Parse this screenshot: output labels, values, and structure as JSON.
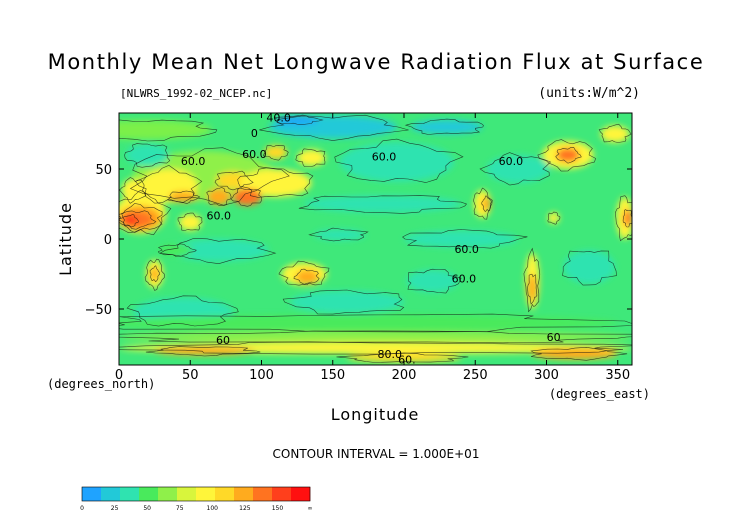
{
  "title": "Monthly Mean Net Longwave Radiation Flux at Surface",
  "file_label": "[NLWRS_1992-02_NCEP.nc]",
  "units_label": "(units:W/m^2)",
  "contour_interval": "CONTOUR INTERVAL = 1.000E+01",
  "chart_data": {
    "type": "heatmap",
    "title": "Monthly Mean Net Longwave Radiation Flux at Surface",
    "xlabel": "Longitude",
    "ylabel": "Latitude",
    "x_unit": "(degrees_east)",
    "y_unit": "(degrees_north)",
    "xlim": [
      0,
      360
    ],
    "ylim": [
      -90,
      90
    ],
    "x_ticks": [
      0,
      50,
      100,
      150,
      200,
      250,
      300,
      350
    ],
    "y_ticks": [
      50,
      0,
      -50
    ],
    "y_tick_labels": [
      "50",
      "0",
      "−50"
    ],
    "contour_labels": [
      {
        "text": "40.0",
        "lon": 112,
        "lat": 84
      },
      {
        "text": "0",
        "lon": 95,
        "lat": 73
      },
      {
        "text": "60.0",
        "lon": 52,
        "lat": 53
      },
      {
        "text": "60.0",
        "lon": 95,
        "lat": 58
      },
      {
        "text": "60.0",
        "lon": 186,
        "lat": 56
      },
      {
        "text": "60.0",
        "lon": 275,
        "lat": 53
      },
      {
        "text": "60.0",
        "lon": 70,
        "lat": 14
      },
      {
        "text": "60.0",
        "lon": 244,
        "lat": -10
      },
      {
        "text": "60.0",
        "lon": 242,
        "lat": -31
      },
      {
        "text": "60",
        "lon": 305,
        "lat": -73
      },
      {
        "text": "60",
        "lon": 73,
        "lat": -75
      },
      {
        "text": "80.0",
        "lon": 190,
        "lat": -85
      },
      {
        "text": "60.",
        "lon": 202,
        "lat": -89
      }
    ],
    "colorbar": {
      "ticks": [
        "0",
        "25",
        "50",
        "75",
        "100",
        "125",
        "150",
        "∞"
      ],
      "colors": [
        "#1fa3ff",
        "#22c9d8",
        "#2fe3b0",
        "#49ea5c",
        "#8ff04a",
        "#d8f53c",
        "#fff53a",
        "#ffd928",
        "#ffab1e",
        "#ff7320",
        "#ff3f1c",
        "#ff1010"
      ]
    },
    "fields": {
      "base_color": "#3fe87a",
      "blobs": [
        {
          "lon": 20,
          "lat": 78,
          "rx": 45,
          "ry": 7,
          "color": "#7cf04a"
        },
        {
          "lon": 60,
          "lat": 45,
          "rx": 50,
          "ry": 18,
          "color": "#8ff04a"
        },
        {
          "lon": 35,
          "lat": 38,
          "rx": 20,
          "ry": 12,
          "color": "#fff53a"
        },
        {
          "lon": 10,
          "lat": 35,
          "rx": 8,
          "ry": 8,
          "color": "#fff53a"
        },
        {
          "lon": 80,
          "lat": 42,
          "rx": 12,
          "ry": 6,
          "color": "#ffd928"
        },
        {
          "lon": 70,
          "lat": 30,
          "rx": 8,
          "ry": 6,
          "color": "#ffab1e"
        },
        {
          "lon": 110,
          "lat": 40,
          "rx": 25,
          "ry": 10,
          "color": "#fff53a"
        },
        {
          "lon": 90,
          "lat": 30,
          "rx": 10,
          "ry": 6,
          "color": "#ff7320"
        },
        {
          "lon": 45,
          "lat": 30,
          "rx": 10,
          "ry": 4,
          "color": "#ffab1e"
        },
        {
          "lon": 15,
          "lat": 18,
          "rx": 18,
          "ry": 14,
          "color": "#fff53a"
        },
        {
          "lon": 15,
          "lat": 15,
          "rx": 15,
          "ry": 9,
          "color": "#ffab1e"
        },
        {
          "lon": 12,
          "lat": 14,
          "rx": 12,
          "ry": 6,
          "color": "#ff7320"
        },
        {
          "lon": 8,
          "lat": 13,
          "rx": 5,
          "ry": 4,
          "color": "#ff3f1c"
        },
        {
          "lon": 50,
          "lat": 12,
          "rx": 8,
          "ry": 6,
          "color": "#fff53a"
        },
        {
          "lon": 135,
          "lat": 58,
          "rx": 10,
          "ry": 6,
          "color": "#fff53a"
        },
        {
          "lon": 110,
          "lat": 62,
          "rx": 8,
          "ry": 5,
          "color": "#ffd928"
        },
        {
          "lon": 255,
          "lat": 25,
          "rx": 6,
          "ry": 10,
          "color": "#fff53a"
        },
        {
          "lon": 258,
          "lat": 25,
          "rx": 3,
          "ry": 5,
          "color": "#ffab1e"
        },
        {
          "lon": 315,
          "lat": 60,
          "rx": 18,
          "ry": 10,
          "color": "#fff53a"
        },
        {
          "lon": 315,
          "lat": 60,
          "rx": 8,
          "ry": 5,
          "color": "#ff7320"
        },
        {
          "lon": 348,
          "lat": 75,
          "rx": 10,
          "ry": 6,
          "color": "#fff53a"
        },
        {
          "lon": 355,
          "lat": 15,
          "rx": 6,
          "ry": 15,
          "color": "#fff53a"
        },
        {
          "lon": 357,
          "lat": 15,
          "rx": 3,
          "ry": 6,
          "color": "#ff7320"
        },
        {
          "lon": 305,
          "lat": 15,
          "rx": 4,
          "ry": 4,
          "color": "#fff53a"
        },
        {
          "lon": 195,
          "lat": 55,
          "rx": 40,
          "ry": 14,
          "color": "#2fe3b0"
        },
        {
          "lon": 280,
          "lat": 50,
          "rx": 22,
          "ry": 10,
          "color": "#2fe3b0"
        },
        {
          "lon": 150,
          "lat": 80,
          "rx": 45,
          "ry": 8,
          "color": "#22c9d8"
        },
        {
          "lon": 125,
          "lat": 85,
          "rx": 15,
          "ry": 3,
          "color": "#1fa3ff"
        },
        {
          "lon": 230,
          "lat": 80,
          "rx": 25,
          "ry": 5,
          "color": "#22c9d8"
        },
        {
          "lon": 20,
          "lat": 60,
          "rx": 15,
          "ry": 8,
          "color": "#2fe3b0"
        },
        {
          "lon": 185,
          "lat": 25,
          "rx": 55,
          "ry": 6,
          "color": "#2fe3b0"
        },
        {
          "lon": 240,
          "lat": 0,
          "rx": 40,
          "ry": 6,
          "color": "#2fe3b0"
        },
        {
          "lon": 155,
          "lat": 3,
          "rx": 18,
          "ry": 4,
          "color": "#2fe3b0"
        },
        {
          "lon": 70,
          "lat": -8,
          "rx": 35,
          "ry": 8,
          "color": "#2fe3b0"
        },
        {
          "lon": 40,
          "lat": -8,
          "rx": 12,
          "ry": 4,
          "color": "#49ea5c"
        },
        {
          "lon": 45,
          "lat": -52,
          "rx": 35,
          "ry": 10,
          "color": "#2fe3b0"
        },
        {
          "lon": 160,
          "lat": -45,
          "rx": 40,
          "ry": 8,
          "color": "#2fe3b0"
        },
        {
          "lon": 330,
          "lat": -20,
          "rx": 18,
          "ry": 12,
          "color": "#2fe3b0"
        },
        {
          "lon": 220,
          "lat": -30,
          "rx": 18,
          "ry": 8,
          "color": "#2fe3b0"
        },
        {
          "lon": 130,
          "lat": -25,
          "rx": 16,
          "ry": 8,
          "color": "#fff53a"
        },
        {
          "lon": 132,
          "lat": -27,
          "rx": 8,
          "ry": 5,
          "color": "#ffab1e"
        },
        {
          "lon": 25,
          "lat": -25,
          "rx": 6,
          "ry": 10,
          "color": "#fff53a"
        },
        {
          "lon": 25,
          "lat": -25,
          "rx": 3,
          "ry": 5,
          "color": "#ffab1e"
        },
        {
          "lon": 290,
          "lat": -30,
          "rx": 5,
          "ry": 20,
          "color": "#fff53a"
        },
        {
          "lon": 290,
          "lat": -35,
          "rx": 3,
          "ry": 10,
          "color": "#ffab1e"
        },
        {
          "lon": 170,
          "lat": -60,
          "rx": 180,
          "ry": 6,
          "color": "#49ea5c"
        },
        {
          "lon": 180,
          "lat": -70,
          "rx": 180,
          "ry": 4,
          "color": "#8ff04a"
        },
        {
          "lon": 180,
          "lat": -78,
          "rx": 180,
          "ry": 4,
          "color": "#fff53a"
        },
        {
          "lon": 60,
          "lat": -80,
          "rx": 35,
          "ry": 3,
          "color": "#ffab1e"
        },
        {
          "lon": 320,
          "lat": -82,
          "rx": 30,
          "ry": 4,
          "color": "#ffab1e"
        },
        {
          "lon": 200,
          "lat": -85,
          "rx": 40,
          "ry": 3,
          "color": "#ffd928"
        }
      ]
    }
  }
}
